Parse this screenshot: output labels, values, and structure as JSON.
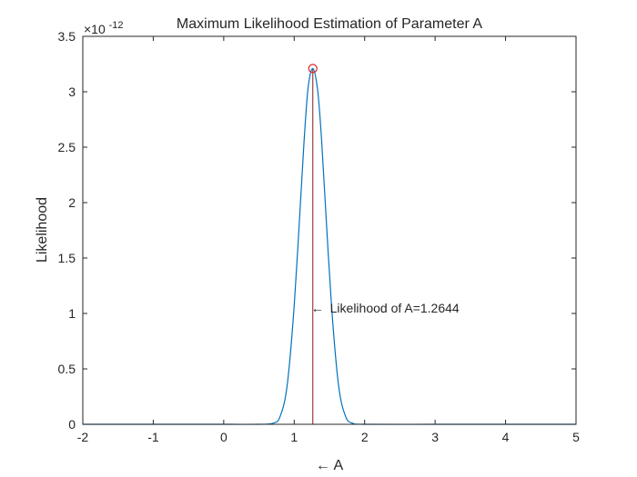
{
  "chart_data": {
    "type": "line",
    "title": "Maximum Likelihood Estimation of Parameter A",
    "xlabel": "← A",
    "ylabel": "Likelihood",
    "xlim": [
      -2,
      5
    ],
    "ylim": [
      0,
      3.5
    ],
    "y_exponent_label": "×10",
    "y_exponent_power": "-12",
    "xticks": [
      -2,
      -1,
      0,
      1,
      2,
      3,
      4,
      5
    ],
    "xtick_labels": [
      "-2",
      "-1",
      "0",
      "1",
      "2",
      "3",
      "4",
      "5"
    ],
    "yticks": [
      0,
      0.5,
      1,
      1.5,
      2,
      2.5,
      3,
      3.5
    ],
    "ytick_labels": [
      "0",
      "0.5",
      "1",
      "1.5",
      "2",
      "2.5",
      "3",
      "3.5"
    ],
    "grid": false,
    "series": [
      {
        "color": "#0072bd",
        "x": [
          -2,
          -1,
          0,
          0.5,
          0.7,
          0.8,
          0.9,
          1.0,
          1.1,
          1.15,
          1.2,
          1.2644,
          1.33,
          1.38,
          1.43,
          1.53,
          1.63,
          1.73,
          1.83,
          2.0,
          3,
          4,
          5
        ],
        "y": [
          0,
          0,
          0,
          0,
          0.01,
          0.07,
          0.35,
          1.07,
          2.12,
          2.65,
          3.05,
          3.21,
          3.03,
          2.65,
          2.12,
          1.07,
          0.35,
          0.07,
          0.01,
          0,
          0,
          0,
          0
        ]
      }
    ],
    "peak": {
      "x": 1.2644,
      "y": 3.21,
      "marker_color": "#d62728"
    },
    "vline": {
      "x": 1.2644,
      "y0": 0,
      "y1": 3.21,
      "color": "#8b1a1a"
    },
    "annotation": {
      "x": 1.2644,
      "y": 1.05,
      "arrow": "←",
      "text": "Likelihood of A=1.2644"
    }
  }
}
